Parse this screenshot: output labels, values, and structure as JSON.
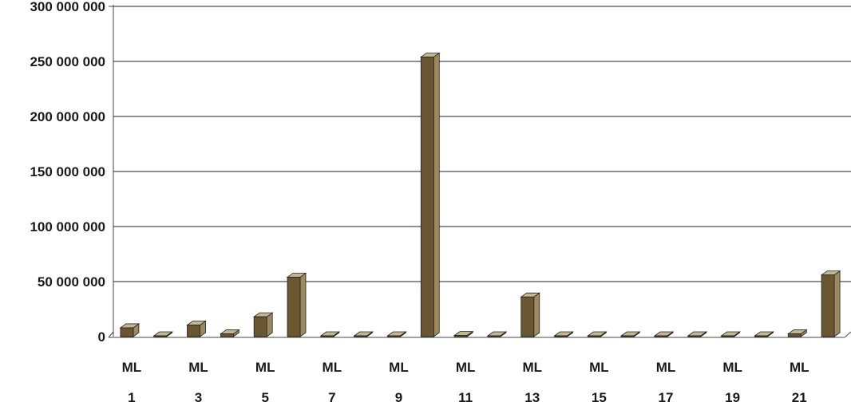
{
  "chart_data": {
    "type": "bar",
    "categories_line1": [
      "ML",
      "",
      "ML",
      "",
      "ML",
      "",
      "ML",
      "",
      "ML",
      "",
      "ML",
      "",
      "ML",
      "",
      "ML",
      "",
      "ML",
      "",
      "ML",
      "",
      "ML",
      ""
    ],
    "categories_line2": [
      "1",
      "",
      "3",
      "",
      "5",
      "",
      "7",
      "",
      "9",
      "",
      "11",
      "",
      "13",
      "",
      "15",
      "",
      "17",
      "",
      "19",
      "",
      "21",
      ""
    ],
    "values": [
      8000000,
      0,
      10500000,
      2500000,
      18000000,
      54000000,
      0,
      0,
      0,
      254000000,
      1000000,
      0,
      36000000,
      500000,
      0,
      500000,
      0,
      0,
      0,
      0,
      2500000,
      56000000
    ],
    "yticks": [
      "0",
      "50 000 000",
      "100 000 000",
      "150 000 000",
      "200 000 000",
      "250 000 000",
      "300 000 000"
    ],
    "ylim": [
      0,
      300000000
    ],
    "title": "",
    "xlabel": "",
    "ylabel": "",
    "grid": true,
    "bar_front_color": "#6b5632",
    "bar_side_color": "#9c8a5e",
    "bar_top_color": "#c4b78f",
    "grid_color": "#222222"
  }
}
